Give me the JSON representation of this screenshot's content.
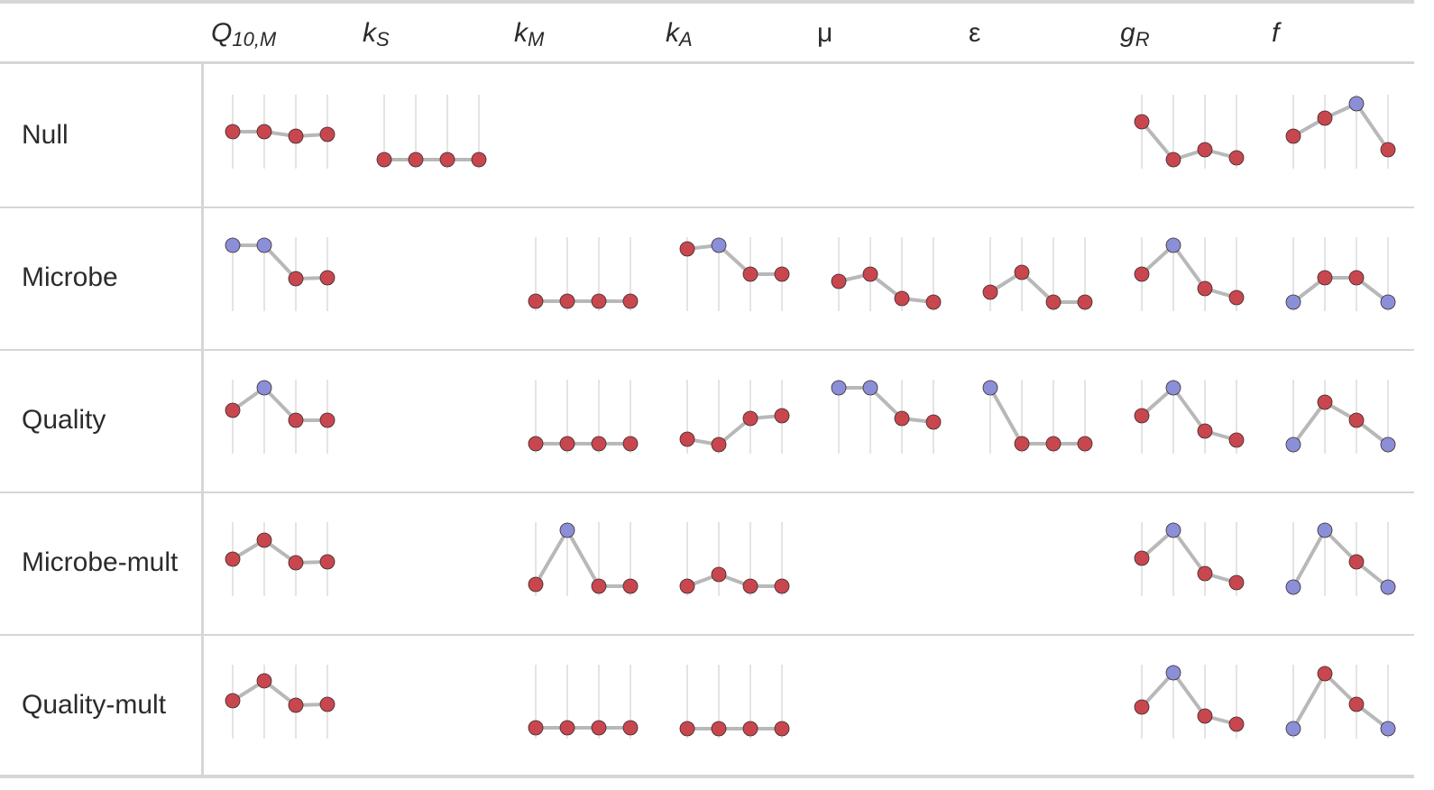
{
  "table": {
    "scale": [
      0,
      82
    ],
    "colors": {
      "point": "#c8474f",
      "highlight": "#8b8fd8",
      "line": "#b8b8b8",
      "guide": "#c8c8c8"
    },
    "columns": [
      {
        "symbol": "Q",
        "subscript": "10,M",
        "italic": true
      },
      {
        "symbol": "k",
        "subscript": "S",
        "italic": true
      },
      {
        "symbol": "k",
        "subscript": "M",
        "italic": true
      },
      {
        "symbol": "k",
        "subscript": "A",
        "italic": true
      },
      {
        "symbol": "μ",
        "italic": false
      },
      {
        "symbol": "ε",
        "italic": false
      },
      {
        "symbol": "g",
        "subscript": "R",
        "italic": true
      },
      {
        "symbol": "f",
        "italic": true
      }
    ],
    "rows": [
      {
        "label": "Null",
        "cells": [
          {
            "values": [
              41,
              41,
              36,
              38
            ],
            "highlight": []
          },
          {
            "values": [
              10,
              10,
              10,
              10
            ],
            "highlight": []
          },
          null,
          null,
          null,
          null,
          {
            "values": [
              52,
              10,
              21,
              12
            ],
            "highlight": []
          },
          {
            "values": [
              36,
              56,
              72,
              21
            ],
            "highlight": [
              2
            ]
          }
        ]
      },
      {
        "label": "Microbe",
        "cells": [
          {
            "values": [
              73,
              73,
              36,
              37
            ],
            "highlight": [
              0,
              1
            ]
          },
          null,
          {
            "values": [
              11,
              11,
              11,
              11
            ],
            "highlight": []
          },
          {
            "values": [
              69,
              73,
              41,
              41
            ],
            "highlight": [
              1
            ]
          },
          {
            "values": [
              33,
              41,
              14,
              10
            ],
            "highlight": []
          },
          {
            "values": [
              21,
              43,
              10,
              10
            ],
            "highlight": []
          },
          {
            "values": [
              41,
              73,
              25,
              15
            ],
            "highlight": [
              1
            ]
          },
          {
            "values": [
              10,
              37,
              37,
              10
            ],
            "highlight": [
              0,
              3
            ]
          }
        ]
      },
      {
        "label": "Quality",
        "cells": [
          {
            "values": [
              48,
              73,
              37,
              37
            ],
            "highlight": [
              1
            ]
          },
          null,
          {
            "values": [
              11,
              11,
              11,
              11
            ],
            "highlight": []
          },
          {
            "values": [
              16,
              10,
              39,
              42
            ],
            "highlight": []
          },
          {
            "values": [
              73,
              73,
              39,
              35
            ],
            "highlight": [
              0,
              1
            ]
          },
          {
            "values": [
              73,
              11,
              11,
              11
            ],
            "highlight": [
              0
            ]
          },
          {
            "values": [
              42,
              73,
              25,
              15
            ],
            "highlight": [
              1
            ]
          },
          {
            "values": [
              10,
              57,
              37,
              10
            ],
            "highlight": [
              0,
              3
            ]
          }
        ]
      },
      {
        "label": "Microbe-mult",
        "cells": [
          {
            "values": [
              41,
              62,
              37,
              38
            ],
            "highlight": []
          },
          null,
          {
            "values": [
              13,
              73,
              11,
              11
            ],
            "highlight": [
              1
            ]
          },
          {
            "values": [
              11,
              24,
              11,
              11
            ],
            "highlight": []
          },
          null,
          null,
          {
            "values": [
              42,
              73,
              25,
              15
            ],
            "highlight": [
              1
            ]
          },
          {
            "values": [
              10,
              73,
              38,
              10
            ],
            "highlight": [
              0,
              1,
              3
            ]
          }
        ]
      },
      {
        "label": "Quality-mult",
        "cells": [
          {
            "values": [
              42,
              64,
              37,
              38
            ],
            "highlight": []
          },
          null,
          {
            "values": [
              12,
              12,
              12,
              12
            ],
            "highlight": []
          },
          {
            "values": [
              11,
              11,
              11,
              11
            ],
            "highlight": []
          },
          null,
          null,
          {
            "values": [
              35,
              73,
              25,
              16
            ],
            "highlight": [
              1
            ]
          },
          {
            "values": [
              11,
              72,
              38,
              11
            ],
            "highlight": [
              0,
              3
            ]
          }
        ]
      }
    ]
  }
}
